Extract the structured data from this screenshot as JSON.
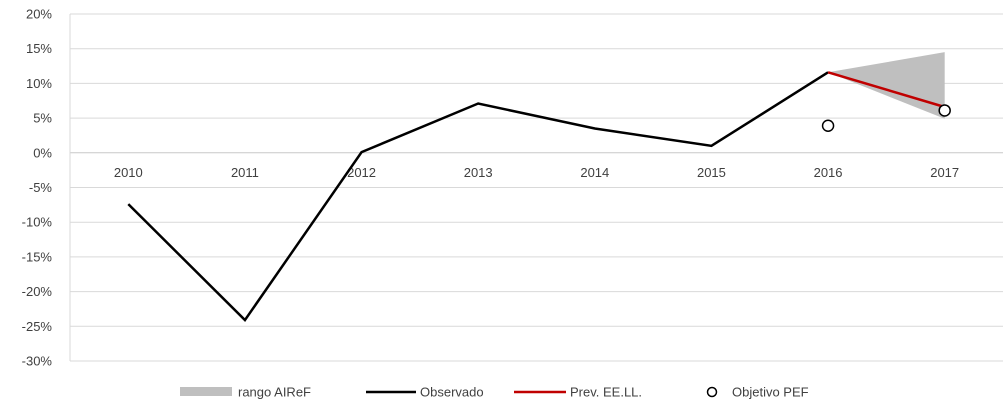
{
  "chart_data": {
    "type": "line",
    "categories": [
      "2010",
      "2011",
      "2012",
      "2013",
      "2014",
      "2015",
      "2016",
      "2017"
    ],
    "y_ticks": [
      20,
      15,
      10,
      5,
      0,
      -5,
      -10,
      -15,
      -20,
      -25,
      -30
    ],
    "y_tick_labels": [
      "20%",
      "15%",
      "10%",
      "5%",
      "0%",
      "-5%",
      "-10%",
      "-15%",
      "-20%",
      "-25%",
      "-30%"
    ],
    "ylim": [
      -30,
      20
    ],
    "grid": "horizontal",
    "legend_position": "bottom",
    "series": [
      {
        "name": "rango AIReF",
        "kind": "band",
        "color": "#bfbfbf",
        "x": [
          "2016",
          "2017"
        ],
        "low": [
          11.6,
          4.9
        ],
        "high": [
          11.6,
          14.5
        ]
      },
      {
        "name": "Observado",
        "kind": "line",
        "color": "#000000",
        "x": [
          "2010",
          "2011",
          "2012",
          "2013",
          "2014",
          "2015",
          "2016"
        ],
        "values": [
          -7.4,
          -24.1,
          0.1,
          7.1,
          3.5,
          1.0,
          11.6
        ]
      },
      {
        "name": "Prev. EE.LL.",
        "kind": "line",
        "color": "#c00000",
        "x": [
          "2016",
          "2017"
        ],
        "values": [
          11.6,
          6.6
        ]
      },
      {
        "name": "Objetivo PEF",
        "kind": "marker",
        "color": "#000000",
        "x": [
          "2016",
          "2017"
        ],
        "values": [
          3.9,
          6.1
        ]
      }
    ]
  }
}
